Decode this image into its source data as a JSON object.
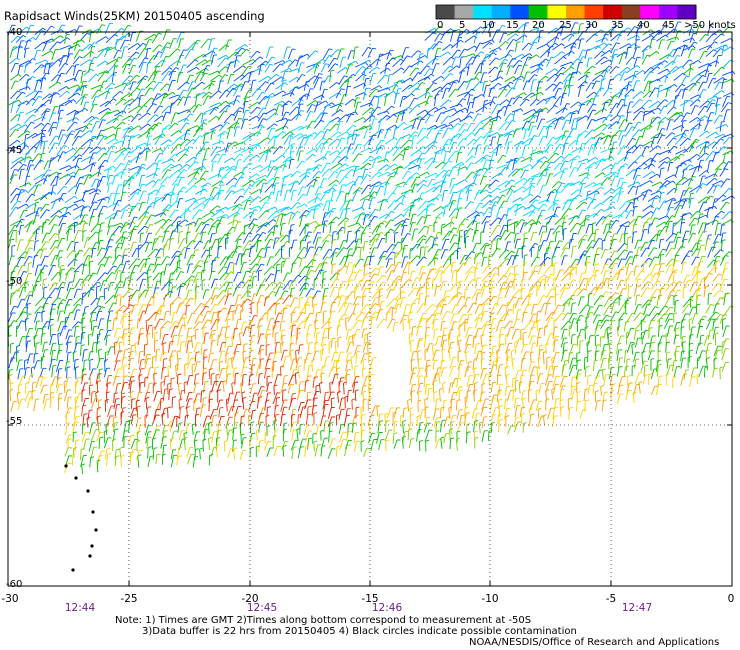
{
  "title": "Rapidsact Winds(25KM) 20150405 ascending",
  "legend": {
    "labels": [
      "0",
      "5",
      "10",
      "15",
      "20",
      "25",
      "30",
      "35",
      "40",
      "45",
      ">50 knots"
    ],
    "colors": [
      "#4a4a4a",
      "#a8a8a8",
      "#00e0ff",
      "#00b0ff",
      "#0050ff",
      "#00c000",
      "#ffff00",
      "#ffa000",
      "#ff4000",
      "#d00000",
      "#8a4020",
      "#ff00ff",
      "#a000ff",
      "#6000c0"
    ]
  },
  "map": {
    "lon_ticks": [
      "-30",
      "-25",
      "-20",
      "-15",
      "-10",
      "-5",
      "0"
    ],
    "lat_ticks": [
      "-40",
      "-45",
      "-50",
      "-55",
      "-60"
    ],
    "time_labels": [
      "12:44",
      "12:45",
      "12:46",
      "12:47"
    ]
  },
  "notes": {
    "line1": "Note: 1) Times are GMT 2)Times along bottom correspond to measurement at -50S",
    "line2": "3)Data buffer is 22 hrs from 20150405 4) Black circles indicate possible contamination",
    "line3": "NOAA/NESDIS/Office of Research and Applications"
  }
}
